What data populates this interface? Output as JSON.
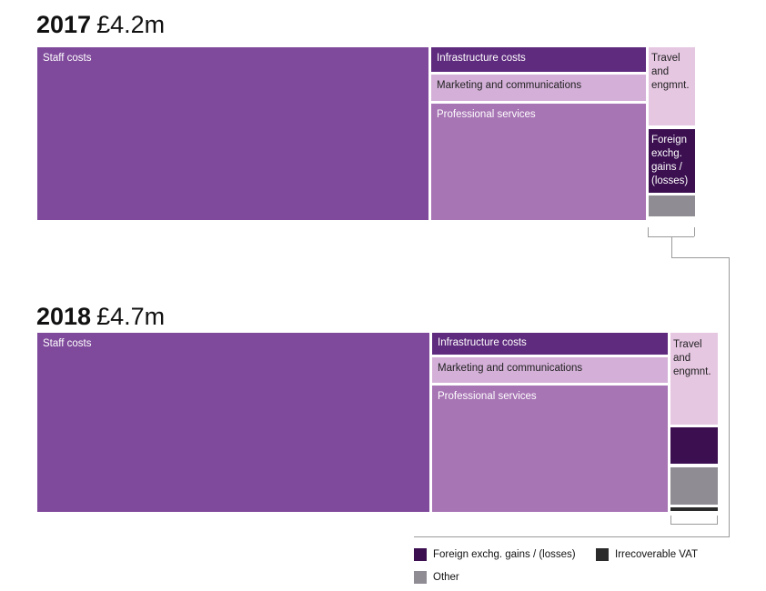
{
  "colors": {
    "staff": "#7f4a9b",
    "infra": "#5f2b7e",
    "marketing": "#d4b0d8",
    "professional": "#a774b4",
    "travel": "#e6c7e2",
    "fx": "#3b0f50",
    "vat": "#2b2b2b",
    "other": "#8f8c93"
  },
  "chart_data": [
    {
      "type": "treemap",
      "year": "2017",
      "total_label": "£4.2m",
      "categories": [
        {
          "key": "staff",
          "label": "Staff costs",
          "share": 0.635
        },
        {
          "key": "infra",
          "label": "Infrastructure costs",
          "share": 0.046
        },
        {
          "key": "marketing",
          "label": "Marketing and communications",
          "share": 0.053
        },
        {
          "key": "professional",
          "label": "Professional services",
          "share": 0.202
        },
        {
          "key": "travel",
          "label": "Travel and engmnt.",
          "share": 0.032
        },
        {
          "key": "fx",
          "label": "Foreign exchg. gains / (losses)",
          "share": 0.025
        },
        {
          "key": "other",
          "label": "",
          "share": 0.007
        }
      ]
    },
    {
      "type": "treemap",
      "year": "2018",
      "total_label": "£4.7m",
      "categories": [
        {
          "key": "staff",
          "label": "Staff costs",
          "share": 0.56
        },
        {
          "key": "infra",
          "label": "Infrastructure costs",
          "share": 0.034
        },
        {
          "key": "marketing",
          "label": "Marketing and communications",
          "share": 0.038
        },
        {
          "key": "professional",
          "label": "Professional services",
          "share": 0.185
        },
        {
          "key": "travel",
          "label": "Travel and engmnt.",
          "share": 0.026
        },
        {
          "key": "fx",
          "label": "",
          "share": 0.01
        },
        {
          "key": "other",
          "label": "",
          "share": 0.01
        },
        {
          "key": "vat",
          "label": "",
          "share": 0.002
        }
      ]
    }
  ],
  "legend": [
    {
      "key": "fx",
      "label": "Foreign exchg. gains / (losses)"
    },
    {
      "key": "vat",
      "label": "Irrecoverable VAT"
    },
    {
      "key": "other",
      "label": "Other"
    }
  ]
}
